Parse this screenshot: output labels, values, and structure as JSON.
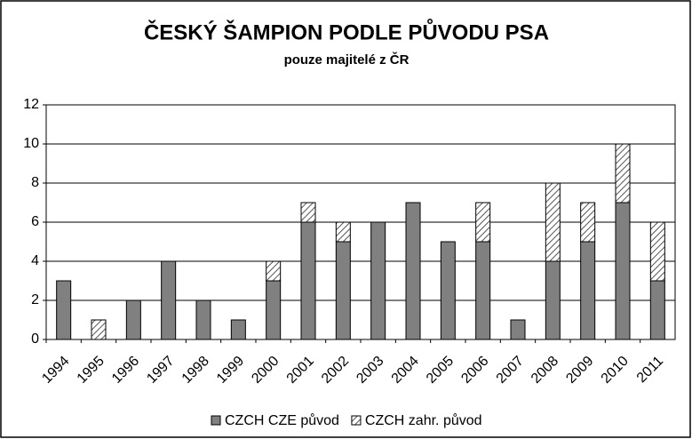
{
  "chart_data": {
    "type": "stacked-bar",
    "title": "ČESKÝ ŠAMPION PODLE PŮVODU PSA",
    "subtitle": "pouze majitelé z ČR",
    "categories": [
      "1994",
      "1995",
      "1996",
      "1997",
      "1998",
      "1999",
      "2000",
      "2001",
      "2002",
      "2003",
      "2004",
      "2005",
      "2006",
      "2007",
      "2008",
      "2009",
      "2010",
      "2011"
    ],
    "series": [
      {
        "name": "CZCH CZE původ",
        "color": "#808080",
        "values": [
          3,
          0,
          2,
          4,
          2,
          1,
          3,
          6,
          5,
          6,
          7,
          5,
          5,
          1,
          4,
          5,
          7,
          3
        ]
      },
      {
        "name": "CZCH zahr. původ",
        "color": "#808080",
        "pattern": "hatch",
        "values": [
          0,
          1,
          0,
          0,
          0,
          0,
          1,
          1,
          1,
          0,
          0,
          0,
          2,
          0,
          4,
          2,
          3,
          3
        ]
      }
    ],
    "ylim": [
      0,
      12
    ],
    "yticks": [
      0,
      2,
      4,
      6,
      8,
      10,
      12
    ],
    "grid": true,
    "legend": "bottom"
  }
}
